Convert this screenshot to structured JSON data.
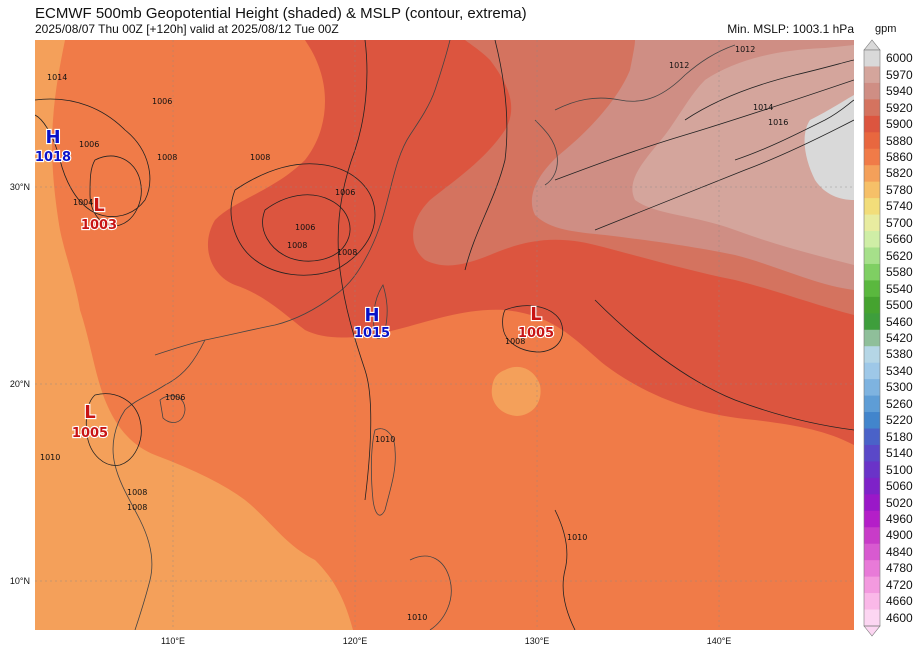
{
  "header": {
    "title": "ECMWF 500mb Geopotential Height (shaded) & MSLP (contour, extrema)",
    "subtitle": "2025/08/07 Thu 00Z [+120h] valid at 2025/08/12 Tue 00Z",
    "min_mslp": "Min. MSLP: 1003.1 hPa"
  },
  "colorbar": {
    "units": "gpm",
    "levels": [
      "6000",
      "5970",
      "5940",
      "5920",
      "5900",
      "5880",
      "5860",
      "5820",
      "5780",
      "5740",
      "5700",
      "5660",
      "5620",
      "5580",
      "5540",
      "5500",
      "5460",
      "5420",
      "5380",
      "5340",
      "5300",
      "5260",
      "5220",
      "5180",
      "5140",
      "5100",
      "5060",
      "5020",
      "4960",
      "4900",
      "4840",
      "4780",
      "4720",
      "4660",
      "4600"
    ],
    "colors": [
      "#d9d9d9",
      "#d4a59c",
      "#cf8e84",
      "#d4735f",
      "#dc553f",
      "#e8673f",
      "#f07b48",
      "#f4a05a",
      "#f6c068",
      "#f2dd7a",
      "#e8eca0",
      "#cfeea6",
      "#a6e08a",
      "#7fcf63",
      "#5ab83e",
      "#45a32f",
      "#3e9e3c",
      "#8fbf9a",
      "#b5d6e6",
      "#9ec8e8",
      "#7eb3e0",
      "#5e9dd6",
      "#4285cc",
      "#4a62c8",
      "#5a48c8",
      "#6a33c8",
      "#7e22c8",
      "#9a18c8",
      "#b41ec8",
      "#c83cc8",
      "#d85ad0",
      "#e87ad8",
      "#f39adf",
      "#fab8e8",
      "#fcd6f2"
    ]
  },
  "axes": {
    "lat_labels": [
      "30°N",
      "20°N",
      "10°N"
    ],
    "lon_labels": [
      "110°E",
      "120°E",
      "130°E",
      "140°E"
    ]
  },
  "map": {
    "extrema": [
      {
        "type": "H",
        "value": "1018",
        "color": "#0a12c8"
      },
      {
        "type": "L",
        "value": "1003",
        "color": "#c81414"
      },
      {
        "type": "H",
        "value": "1015",
        "color": "#0a12c8"
      },
      {
        "type": "L",
        "value": "1005",
        "color": "#c81414"
      },
      {
        "type": "L",
        "value": "1005",
        "color": "#c81414"
      }
    ],
    "isobar_labels": [
      "1014",
      "1006",
      "1006",
      "1008",
      "1004",
      "1008",
      "1006",
      "1006",
      "1008",
      "1008",
      "1012",
      "1012",
      "1014",
      "1016",
      "1008",
      "1010",
      "1010",
      "1008",
      "1008",
      "1010",
      "1006",
      "1010"
    ]
  }
}
